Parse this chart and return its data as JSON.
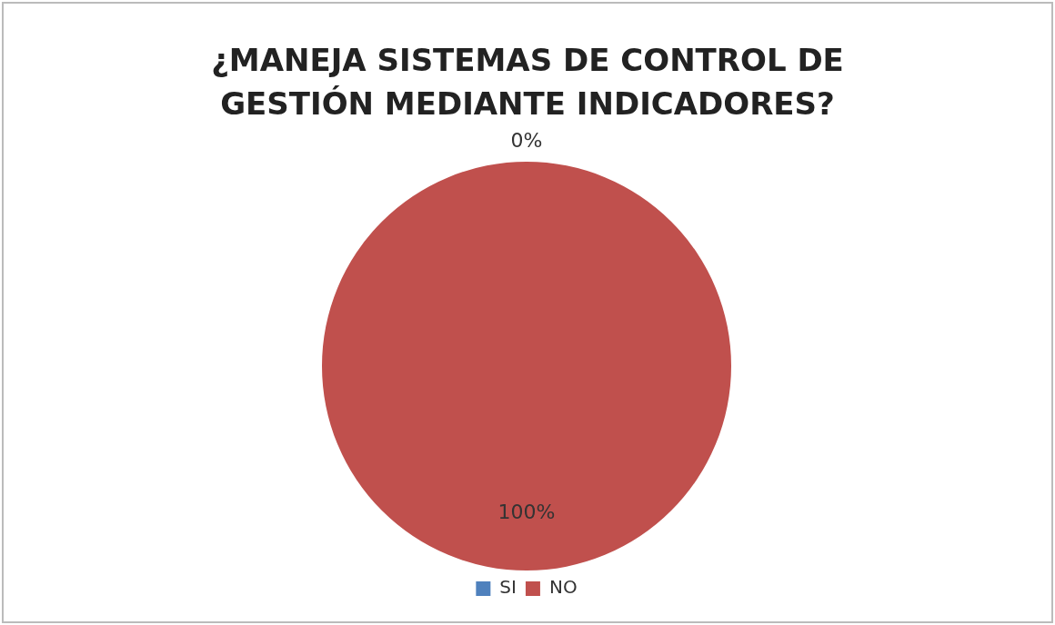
{
  "chart_data": {
    "type": "pie",
    "title": "¿MANEJA SISTEMAS DE CONTROL DE GESTIÓN MEDIANTE INDICADORES?",
    "categories": [
      "SI",
      "NO"
    ],
    "values": [
      0,
      100
    ],
    "colors": [
      "#4f81bd",
      "#c0504d"
    ],
    "value_labels": [
      "0%",
      "100%"
    ],
    "legend": "bottom"
  }
}
